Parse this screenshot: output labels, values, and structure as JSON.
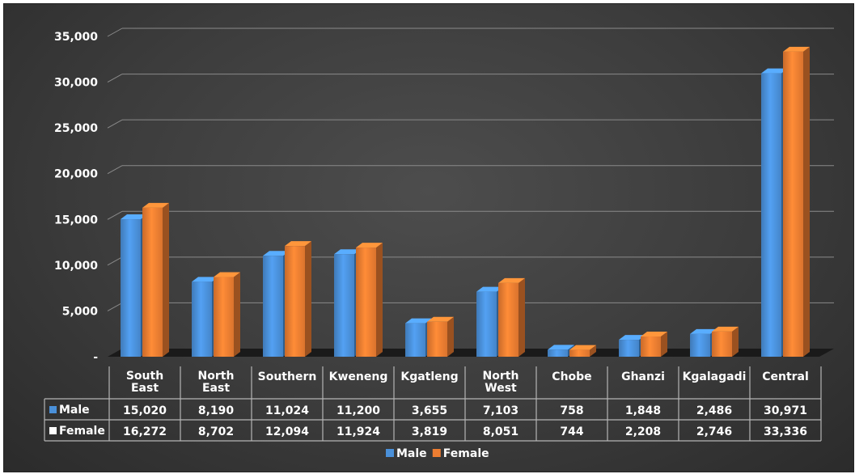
{
  "chart_data": {
    "type": "bar",
    "categories": [
      "South East",
      "North East",
      "Southern",
      "Kweneng",
      "Kgatleng",
      "North West",
      "Chobe",
      "Ghanzi",
      "Kgalagadi",
      "Central"
    ],
    "category_lines": [
      [
        "South",
        "East"
      ],
      [
        "North",
        "East"
      ],
      [
        "Southern"
      ],
      [
        "Kweneng"
      ],
      [
        "Kgatleng"
      ],
      [
        "North",
        "West"
      ],
      [
        "Chobe"
      ],
      [
        "Ghanzi"
      ],
      [
        "Kgalagadi"
      ],
      [
        "Central"
      ]
    ],
    "series": [
      {
        "name": "Male",
        "values": [
          15020,
          8190,
          11024,
          11200,
          3655,
          7103,
          758,
          1848,
          2486,
          30971
        ],
        "color": "#4a90d9"
      },
      {
        "name": "Female",
        "values": [
          16272,
          8702,
          12094,
          11924,
          3819,
          8051,
          744,
          2208,
          2746,
          33336
        ],
        "color": "#ed7d31"
      }
    ],
    "table_values": {
      "Male": [
        "15,020",
        "8,190",
        "11,024",
        "11,200",
        "3,655",
        "7,103",
        "758",
        "1,848",
        "2,486",
        "30,971"
      ],
      "Female": [
        "16,272",
        "8,702",
        "12,094",
        "11,924",
        "3,819",
        "8,051",
        "744",
        "2,208",
        "2,746",
        "33,336"
      ]
    },
    "y_ticks": [
      0,
      5000,
      10000,
      15000,
      20000,
      25000,
      30000,
      35000
    ],
    "y_tick_labels": [
      "-",
      "5,000",
      "10,000",
      "15,000",
      "20,000",
      "25,000",
      "30,000",
      "35,000"
    ],
    "ylim": [
      0,
      35000
    ],
    "grid": true,
    "legend_position": "bottom",
    "data_table": true,
    "style": "3d-clustered-column"
  }
}
